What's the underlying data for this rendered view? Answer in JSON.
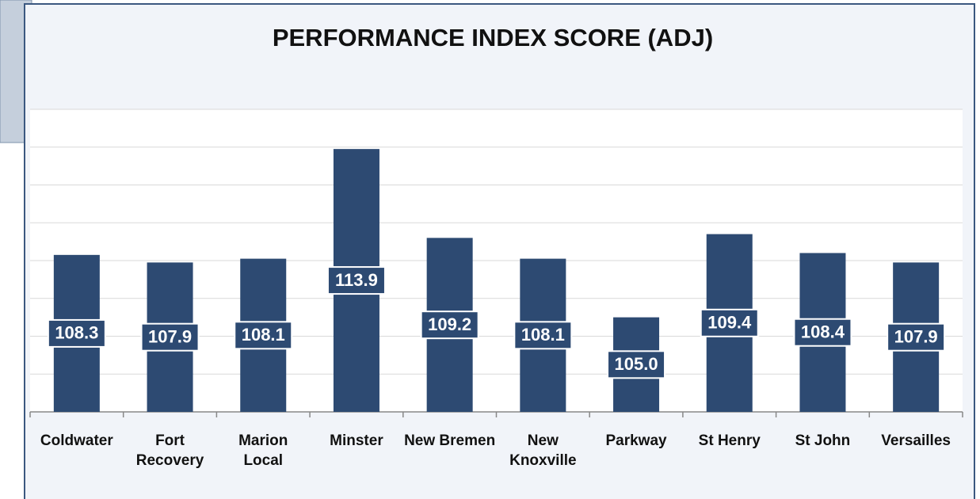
{
  "chart_data": {
    "type": "bar",
    "title": "PERFORMANCE INDEX SCORE (ADJ)",
    "categories": [
      "Coldwater",
      "Fort Recovery",
      "Marion Local",
      "Minster",
      "New Bremen",
      "New Knoxville",
      "Parkway",
      "St Henry",
      "St John",
      "Versailles"
    ],
    "values": [
      108.3,
      107.9,
      108.1,
      113.9,
      109.2,
      108.1,
      105.0,
      109.4,
      108.4,
      107.9
    ],
    "value_labels": [
      "108.3",
      "107.9",
      "108.1",
      "113.9",
      "109.2",
      "108.1",
      "105.0",
      "109.4",
      "108.4",
      "107.9"
    ],
    "color": "#2d4a72",
    "ylim": [
      100,
      116
    ],
    "yticks": [
      100,
      102,
      104,
      106,
      108,
      110,
      112,
      114,
      116
    ],
    "grid": true
  }
}
